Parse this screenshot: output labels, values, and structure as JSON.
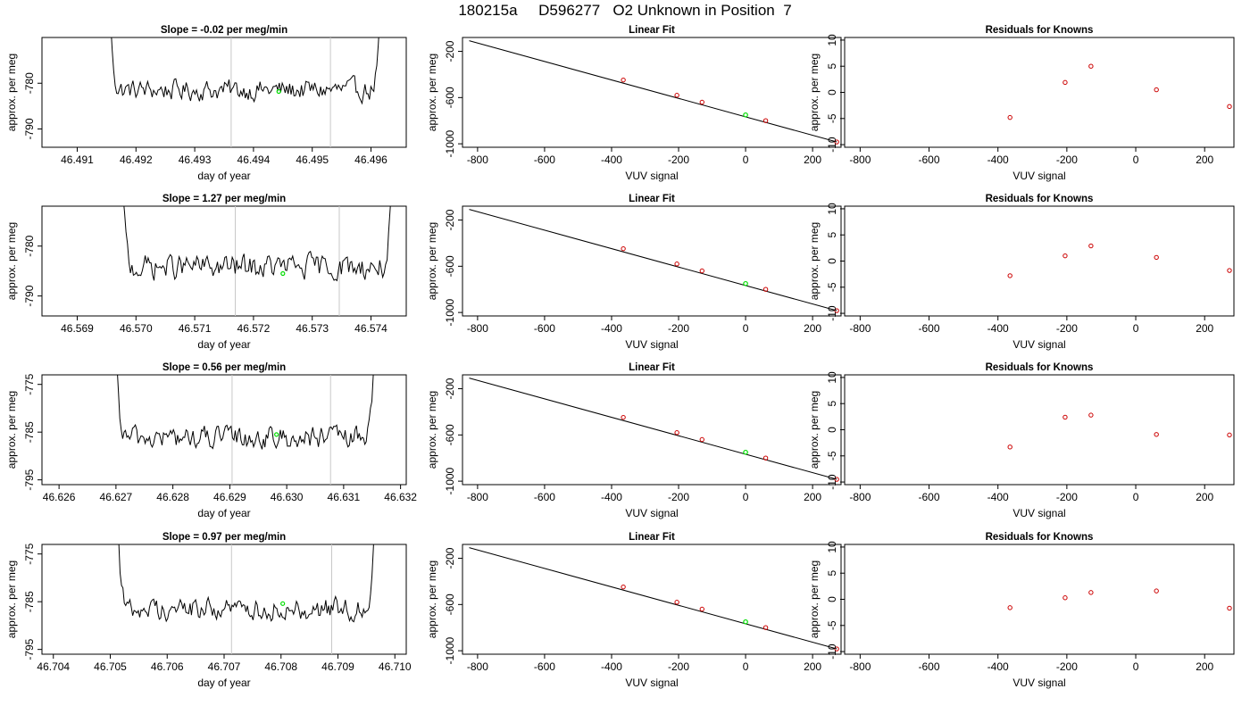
{
  "title": "180215a     D596277   O2 Unknown in Position  7",
  "colors": {
    "trace": "#000000",
    "window_line": "#c8c8c8",
    "unknown_point": "#00dd00",
    "known_point": "#cc0000",
    "fit_line": "#000000",
    "axis": "#000000"
  },
  "chart_data": [
    {
      "type": "line",
      "row": 1,
      "title_label": "Slope =",
      "slope": "-0.02",
      "slope_unit": "per meg/min",
      "xlabel": "day of year",
      "ylabel": "approx. per meg",
      "xlim": [
        46.4904,
        46.4966
      ],
      "ylim": [
        -794,
        -770
      ],
      "xticks": [
        "46.491",
        "46.492",
        "46.493",
        "46.494",
        "46.495",
        "46.496"
      ],
      "yticks": [
        "-790",
        "-780"
      ],
      "window_lines": [
        46.49362,
        46.49531
      ],
      "trace_start": 46.49147,
      "trace_end": 46.49625,
      "baseline": -781.5,
      "noise": 2.2,
      "unknown_point": [
        46.49443,
        -781.8
      ],
      "grid": false
    },
    {
      "type": "scatter",
      "row": 1,
      "title": "Linear Fit",
      "xlabel": "VUV signal",
      "ylabel": "approx. per meg",
      "xlim": [
        -845,
        285
      ],
      "ylim": [
        -1030,
        -80
      ],
      "xticks": [
        "-800",
        "-600",
        "-400",
        "-200",
        "0",
        "200"
      ],
      "yticks": [
        "-1000",
        "-600",
        "-200"
      ],
      "known_points": [
        {
          "x": -365,
          "y": -448
        },
        {
          "x": -205,
          "y": -580
        },
        {
          "x": -130,
          "y": -640
        },
        {
          "x": 60,
          "y": -800
        },
        {
          "x": 272,
          "y": -984
        }
      ],
      "unknown_point": {
        "x": 0,
        "y": -750
      },
      "fit_line": [
        [
          -825,
          -108
        ],
        [
          272,
          -984
        ]
      ],
      "grid": false
    },
    {
      "type": "scatter",
      "row": 1,
      "title": "Residuals for Knowns",
      "xlabel": "VUV signal",
      "ylabel": "approx. per meg",
      "xlim": [
        -845,
        285
      ],
      "ylim": [
        -10.5,
        10.5
      ],
      "xticks": [
        "-800",
        "-600",
        "-400",
        "-200",
        "0",
        "200"
      ],
      "yticks": [
        "-10",
        "-5",
        "0",
        "5",
        "10"
      ],
      "points": [
        {
          "x": -365,
          "y": -4.8
        },
        {
          "x": -205,
          "y": 1.9
        },
        {
          "x": -130,
          "y": 5.0
        },
        {
          "x": 60,
          "y": 0.5
        },
        {
          "x": 272,
          "y": -2.7
        }
      ],
      "grid": false
    },
    {
      "type": "line",
      "row": 2,
      "title_label": "Slope =",
      "slope": "1.27",
      "slope_unit": "per meg/min",
      "xlabel": "day of year",
      "ylabel": "approx. per meg",
      "xlim": [
        46.5684,
        46.5746
      ],
      "ylim": [
        -794,
        -772
      ],
      "xticks": [
        "46.569",
        "46.570",
        "46.571",
        "46.572",
        "46.573",
        "46.574"
      ],
      "yticks": [
        "-790",
        "-780"
      ],
      "window_lines": [
        46.57169,
        46.57346
      ],
      "trace_start": 46.56968,
      "trace_end": 46.57445,
      "baseline": -784.2,
      "noise": 2.4,
      "unknown_point": [
        46.5725,
        -785.5
      ],
      "grid": false
    },
    {
      "type": "scatter",
      "row": 2,
      "title": "Linear Fit",
      "xlabel": "VUV signal",
      "ylabel": "approx. per meg",
      "xlim": [
        -845,
        285
      ],
      "ylim": [
        -1030,
        -80
      ],
      "xticks": [
        "-800",
        "-600",
        "-400",
        "-200",
        "0",
        "200"
      ],
      "yticks": [
        "-1000",
        "-600",
        "-200"
      ],
      "known_points": [
        {
          "x": -365,
          "y": -448
        },
        {
          "x": -205,
          "y": -580
        },
        {
          "x": -130,
          "y": -640
        },
        {
          "x": 60,
          "y": -800
        },
        {
          "x": 272,
          "y": -984
        }
      ],
      "unknown_point": {
        "x": 0,
        "y": -750
      },
      "fit_line": [
        [
          -825,
          -108
        ],
        [
          272,
          -984
        ]
      ],
      "grid": false
    },
    {
      "type": "scatter",
      "row": 2,
      "title": "Residuals for Knowns",
      "xlabel": "VUV signal",
      "ylabel": "approx. per meg",
      "xlim": [
        -845,
        285
      ],
      "ylim": [
        -10.5,
        10.5
      ],
      "xticks": [
        "-800",
        "-600",
        "-400",
        "-200",
        "0",
        "200"
      ],
      "yticks": [
        "-10",
        "-5",
        "0",
        "5",
        "10"
      ],
      "points": [
        {
          "x": -365,
          "y": -2.8
        },
        {
          "x": -205,
          "y": 1.0
        },
        {
          "x": -130,
          "y": 2.9
        },
        {
          "x": 60,
          "y": 0.7
        },
        {
          "x": 272,
          "y": -1.8
        }
      ],
      "grid": false
    },
    {
      "type": "line",
      "row": 3,
      "title_label": "Slope =",
      "slope": "0.56",
      "slope_unit": "per meg/min",
      "xlabel": "day of year",
      "ylabel": "approx. per meg",
      "xlim": [
        46.6257,
        46.6321
      ],
      "ylim": [
        -796,
        -773
      ],
      "xticks": [
        "46.626",
        "46.627",
        "46.628",
        "46.629",
        "46.630",
        "46.631",
        "46.632"
      ],
      "yticks": [
        "-795",
        "-785",
        "-775"
      ],
      "window_lines": [
        46.62904,
        46.63077
      ],
      "trace_start": 46.62692,
      "trace_end": 46.63162,
      "baseline": -786.2,
      "noise": 2.3,
      "unknown_point": [
        46.62982,
        -785.5
      ],
      "grid": false
    },
    {
      "type": "scatter",
      "row": 3,
      "title": "Linear Fit",
      "xlabel": "VUV signal",
      "ylabel": "approx. per meg",
      "xlim": [
        -845,
        285
      ],
      "ylim": [
        -1030,
        -80
      ],
      "xticks": [
        "-800",
        "-600",
        "-400",
        "-200",
        "0",
        "200"
      ],
      "yticks": [
        "-1000",
        "-600",
        "-200"
      ],
      "known_points": [
        {
          "x": -365,
          "y": -448
        },
        {
          "x": -205,
          "y": -580
        },
        {
          "x": -130,
          "y": -640
        },
        {
          "x": 60,
          "y": -800
        },
        {
          "x": 272,
          "y": -984
        }
      ],
      "unknown_point": {
        "x": 0,
        "y": -750
      },
      "fit_line": [
        [
          -825,
          -108
        ],
        [
          272,
          -984
        ]
      ],
      "grid": false
    },
    {
      "type": "scatter",
      "row": 3,
      "title": "Residuals for Knowns",
      "xlabel": "VUV signal",
      "ylabel": "approx. per meg",
      "xlim": [
        -845,
        285
      ],
      "ylim": [
        -10.5,
        10.5
      ],
      "xticks": [
        "-800",
        "-600",
        "-400",
        "-200",
        "0",
        "200"
      ],
      "yticks": [
        "-10",
        "-5",
        "0",
        "5",
        "10"
      ],
      "points": [
        {
          "x": -365,
          "y": -3.3
        },
        {
          "x": -205,
          "y": 2.4
        },
        {
          "x": -130,
          "y": 2.8
        },
        {
          "x": 60,
          "y": -0.9
        },
        {
          "x": 272,
          "y": -1.0
        }
      ],
      "grid": false
    },
    {
      "type": "line",
      "row": 4,
      "title_label": "Slope =",
      "slope": "0.97",
      "slope_unit": "per meg/min",
      "xlabel": "day of year",
      "ylabel": "approx. per meg",
      "xlim": [
        46.7038,
        46.7102
      ],
      "ylim": [
        -796,
        -773
      ],
      "xticks": [
        "46.704",
        "46.705",
        "46.706",
        "46.707",
        "46.708",
        "46.709",
        "46.710"
      ],
      "yticks": [
        "-795",
        "-785",
        "-775"
      ],
      "window_lines": [
        46.70713,
        46.70889
      ],
      "trace_start": 46.70505,
      "trace_end": 46.70972,
      "baseline": -786.5,
      "noise": 2.2,
      "unknown_point": [
        46.70803,
        -785.4
      ],
      "grid": false
    },
    {
      "type": "scatter",
      "row": 4,
      "title": "Linear Fit",
      "xlabel": "VUV signal",
      "ylabel": "approx. per meg",
      "xlim": [
        -845,
        285
      ],
      "ylim": [
        -1030,
        -80
      ],
      "xticks": [
        "-800",
        "-600",
        "-400",
        "-200",
        "0",
        "200"
      ],
      "yticks": [
        "-1000",
        "-600",
        "-200"
      ],
      "known_points": [
        {
          "x": -365,
          "y": -448
        },
        {
          "x": -205,
          "y": -580
        },
        {
          "x": -130,
          "y": -640
        },
        {
          "x": 60,
          "y": -800
        },
        {
          "x": 272,
          "y": -984
        }
      ],
      "unknown_point": {
        "x": 0,
        "y": -750
      },
      "fit_line": [
        [
          -825,
          -108
        ],
        [
          272,
          -984
        ]
      ],
      "grid": false
    },
    {
      "type": "scatter",
      "row": 4,
      "title": "Residuals for Knowns",
      "xlabel": "VUV signal",
      "ylabel": "approx. per meg",
      "xlim": [
        -845,
        285
      ],
      "ylim": [
        -10.5,
        10.5
      ],
      "xticks": [
        "-800",
        "-600",
        "-400",
        "-200",
        "0",
        "200"
      ],
      "yticks": [
        "-10",
        "-5",
        "0",
        "5",
        "10"
      ],
      "points": [
        {
          "x": -365,
          "y": -1.6
        },
        {
          "x": -205,
          "y": 0.3
        },
        {
          "x": -130,
          "y": 1.3
        },
        {
          "x": 60,
          "y": 1.6
        },
        {
          "x": 272,
          "y": -1.7
        }
      ],
      "grid": false
    }
  ]
}
